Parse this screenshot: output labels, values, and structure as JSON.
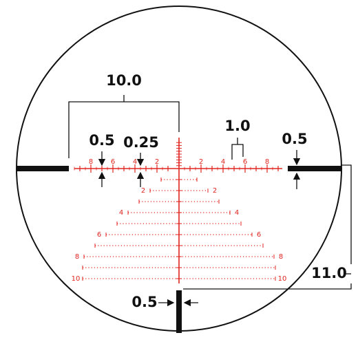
{
  "annotations": {
    "bracket_width": "10.0",
    "left_post": "0.5",
    "hash_small": "0.25",
    "hash_spacing": "1.0",
    "right_post": "0.5",
    "post_distance": "11.0",
    "bottom_post": "0.5"
  },
  "horizontal_labels": {
    "left": [
      "8",
      "6",
      "4",
      "2"
    ],
    "right": [
      "2",
      "4",
      "6",
      "8"
    ]
  },
  "vertical_labels": {
    "left": [
      "2",
      "4",
      "6",
      "8",
      "10"
    ],
    "right": [
      "2",
      "4",
      "6",
      "8",
      "10"
    ]
  }
}
